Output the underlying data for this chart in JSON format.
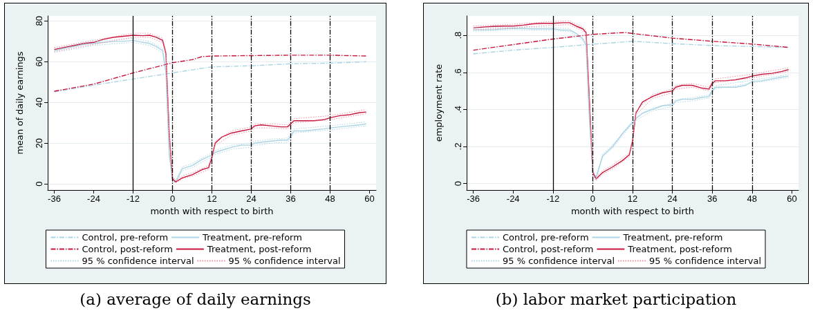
{
  "chart_data": [
    {
      "type": "line",
      "xlabel": "month with respect to birth",
      "ylabel": "mean of daily earnings",
      "xlim": [
        -38,
        62
      ],
      "xticks": [
        -36,
        -24,
        -12,
        0,
        12,
        24,
        36,
        48,
        60
      ],
      "ylim": [
        -3,
        82.5
      ],
      "yticks": [
        0,
        20,
        40,
        60,
        80
      ],
      "grid": "y",
      "legend": "bottom",
      "marker": "none",
      "x": [
        -36,
        -33,
        -30,
        -27,
        -24,
        -21,
        -18,
        -15,
        -12,
        -9,
        -7,
        -5,
        -3,
        -2,
        -1,
        0,
        1,
        3,
        6,
        9,
        11,
        12,
        13,
        15,
        18,
        21,
        24,
        25,
        27,
        30,
        33,
        35,
        36,
        37,
        40,
        43,
        46,
        48,
        51,
        54,
        57,
        59
      ],
      "series": [
        {
          "name": "Control, pre-reform",
          "color": "#a9d4e4",
          "line_style": "dashed",
          "x": [
            -36,
            -24,
            -12,
            0,
            6,
            12,
            24,
            36,
            48,
            59
          ],
          "values": [
            45.2,
            48.5,
            51.5,
            54.5,
            56,
            57.5,
            58,
            59,
            59.3,
            60
          ]
        },
        {
          "name": "Treatment, pre-reform",
          "color": "#a9d4e4",
          "line_style": "solid",
          "values": [
            65.5,
            66.5,
            67.5,
            68.5,
            69,
            69.5,
            70,
            70,
            70.5,
            69.5,
            69,
            67.5,
            65.5,
            55,
            15,
            2,
            1,
            7.5,
            9,
            12,
            13.5,
            14,
            15.5,
            16.5,
            18,
            19,
            19,
            20,
            20.5,
            21,
            21.5,
            21.5,
            23.5,
            26,
            26,
            26.5,
            27,
            27.5,
            28,
            28.5,
            29,
            29.5
          ]
        },
        {
          "name": "Control, post-reform",
          "color": "#c8143c",
          "line_style": "dashed",
          "x": [
            -36,
            -24,
            -12,
            0,
            6,
            9,
            12,
            24,
            36,
            48,
            59
          ],
          "values": [
            45.5,
            49,
            54.5,
            59.5,
            61,
            62.5,
            62.8,
            63,
            63.2,
            63.2,
            62.8
          ]
        },
        {
          "name": "Treatment, post-reform",
          "color": "#c8143c",
          "line_style": "solid",
          "values": [
            66,
            67,
            68,
            69,
            69.5,
            71,
            72,
            72.5,
            73,
            72.8,
            73,
            72,
            70.5,
            64,
            25,
            2.5,
            1,
            3,
            4.5,
            7,
            8,
            13,
            20,
            23,
            25,
            26,
            27,
            28.5,
            29,
            28.5,
            28,
            28,
            29.5,
            31,
            31,
            31,
            31.5,
            32.5,
            33.5,
            34,
            35,
            35.3
          ]
        },
        {
          "name": "95 % confidence interval",
          "color": "#a9d4e4",
          "line_style": "dotted",
          "x": [
            -36,
            -24,
            -12,
            -7,
            -3,
            -2,
            -1,
            0,
            1,
            3,
            6,
            11,
            12,
            13,
            18,
            24,
            25,
            30,
            35,
            36,
            37,
            48,
            59
          ],
          "values": [
            66.5,
            70,
            71.5,
            70,
            66.5,
            56,
            16,
            3,
            1.8,
            8.5,
            10,
            14.5,
            15,
            16.5,
            19,
            20,
            21,
            22,
            22.5,
            24.5,
            27,
            28.5,
            30.5
          ]
        },
        {
          "name": "95 % confidence interval",
          "color": "#f08ca0",
          "line_style": "dotted",
          "x": [
            -36,
            -24,
            -12,
            -7,
            -3,
            -2,
            -1,
            0,
            1,
            3,
            6,
            11,
            12,
            13,
            18,
            24,
            25,
            30,
            35,
            36,
            37,
            48,
            59
          ],
          "values": [
            67,
            70.5,
            74,
            74,
            71.5,
            65,
            26,
            3.5,
            1.8,
            4,
            5.5,
            9,
            14,
            21,
            26,
            28,
            29.5,
            29.5,
            29,
            30.5,
            32,
            33.5,
            36.5
          ]
        },
        {
          "color": "#a9d4e4",
          "line_style": "dotted",
          "x": [
            -36,
            -24,
            -12,
            -7,
            -3,
            -2,
            -1,
            0,
            1,
            3,
            6,
            11,
            12,
            13,
            18,
            24,
            25,
            30,
            35,
            36,
            37,
            48,
            59
          ],
          "values": [
            64.5,
            68,
            69.5,
            68,
            64.5,
            54,
            14,
            1,
            0.5,
            6.5,
            8,
            12.5,
            13,
            14.5,
            17,
            18,
            19,
            20,
            20.5,
            22.5,
            25,
            26.5,
            28.5
          ]
        },
        {
          "color": "#f08ca0",
          "line_style": "dotted",
          "x": [
            -36,
            -24,
            -12,
            -7,
            -3,
            -2,
            -1,
            0,
            1,
            3,
            6,
            11,
            12,
            13,
            18,
            24,
            25,
            30,
            35,
            36,
            37,
            48,
            59
          ],
          "values": [
            65,
            68.5,
            72,
            72,
            69.5,
            63,
            24,
            1.5,
            0.5,
            2.5,
            3.8,
            7,
            12,
            19,
            24,
            26,
            27.5,
            27.5,
            27,
            28.5,
            30,
            31.5,
            34.5
          ]
        }
      ],
      "ref_lines": [
        {
          "axis": "x",
          "value": -12,
          "color": "#000000",
          "line_style": "solid"
        },
        {
          "axis": "x",
          "value": 0,
          "color": "#000000",
          "line_style": "dashed"
        },
        {
          "axis": "x",
          "value": 12,
          "color": "#000000",
          "line_style": "dashed"
        },
        {
          "axis": "x",
          "value": 24,
          "color": "#000000",
          "line_style": "dashed"
        },
        {
          "axis": "x",
          "value": 36,
          "color": "#000000",
          "line_style": "dashed"
        },
        {
          "axis": "x",
          "value": 48,
          "color": "#000000",
          "line_style": "dashed"
        }
      ],
      "annotations": [
        "(a) average of daily earnings"
      ]
    },
    {
      "type": "line",
      "xlabel": "month with respect to birth",
      "ylabel": "employment rate",
      "xlim": [
        -38,
        62
      ],
      "xticks": [
        -36,
        -24,
        -12,
        0,
        12,
        24,
        36,
        48,
        60
      ],
      "ylim": [
        -0.035,
        0.905
      ],
      "yticks": [
        0,
        {
          "value": 0.2,
          "label": ".2"
        },
        {
          "value": 0.4,
          "label": ".4"
        },
        {
          "value": 0.6,
          "label": ".6"
        },
        {
          "value": 0.8,
          "label": ".8"
        }
      ],
      "grid": "y",
      "legend": "bottom",
      "marker": "none",
      "x": [
        -36,
        -33,
        -30,
        -27,
        -24,
        -21,
        -18,
        -15,
        -12,
        -9,
        -7,
        -5,
        -3,
        -2,
        -1,
        0,
        1,
        3,
        6,
        9,
        11,
        12,
        13,
        15,
        18,
        21,
        24,
        25,
        27,
        30,
        33,
        35,
        36,
        37,
        40,
        43,
        46,
        48,
        51,
        54,
        57,
        59
      ],
      "series": [
        {
          "name": "Control, pre-reform",
          "color": "#a9d4e4",
          "line_style": "dashed",
          "x": [
            -36,
            -24,
            -12,
            0,
            12,
            24,
            36,
            48,
            59
          ],
          "values": [
            0.7,
            0.72,
            0.735,
            0.752,
            0.768,
            0.755,
            0.745,
            0.74,
            0.735
          ]
        },
        {
          "name": "Treatment, pre-reform",
          "color": "#a9d4e4",
          "line_style": "solid",
          "values": [
            0.83,
            0.83,
            0.83,
            0.835,
            0.838,
            0.837,
            0.835,
            0.835,
            0.835,
            0.828,
            0.828,
            0.81,
            0.78,
            0.75,
            0.35,
            0.06,
            0.03,
            0.15,
            0.2,
            0.27,
            0.31,
            0.33,
            0.35,
            0.38,
            0.4,
            0.42,
            0.425,
            0.445,
            0.455,
            0.455,
            0.465,
            0.47,
            0.5,
            0.52,
            0.52,
            0.52,
            0.53,
            0.55,
            0.555,
            0.565,
            0.575,
            0.58
          ]
        },
        {
          "name": "Control, post-reform",
          "color": "#c8143c",
          "line_style": "dashed",
          "x": [
            -36,
            -24,
            -12,
            0,
            6,
            10,
            12,
            24,
            36,
            48,
            59
          ],
          "values": [
            0.72,
            0.75,
            0.78,
            0.805,
            0.812,
            0.815,
            0.81,
            0.785,
            0.768,
            0.753,
            0.735
          ]
        },
        {
          "name": "Treatment, post-reform",
          "color": "#c8143c",
          "line_style": "solid",
          "values": [
            0.84,
            0.845,
            0.848,
            0.85,
            0.85,
            0.855,
            0.862,
            0.865,
            0.865,
            0.868,
            0.868,
            0.85,
            0.835,
            0.815,
            0.45,
            0.06,
            0.025,
            0.06,
            0.09,
            0.125,
            0.155,
            0.23,
            0.38,
            0.44,
            0.47,
            0.49,
            0.5,
            0.52,
            0.53,
            0.53,
            0.515,
            0.51,
            0.54,
            0.555,
            0.555,
            0.56,
            0.57,
            0.58,
            0.59,
            0.595,
            0.605,
            0.615
          ]
        },
        {
          "name": "95 % confidence interval",
          "color": "#a9d4e4",
          "line_style": "dotted",
          "x": [
            -36,
            -24,
            -12,
            -7,
            -3,
            -2,
            -1,
            0,
            1,
            3,
            6,
            11,
            12,
            13,
            18,
            24,
            25,
            30,
            35,
            36,
            37,
            48,
            59
          ],
          "values": [
            0.838,
            0.846,
            0.843,
            0.836,
            0.788,
            0.758,
            0.358,
            0.068,
            0.038,
            0.158,
            0.208,
            0.318,
            0.338,
            0.358,
            0.408,
            0.433,
            0.453,
            0.463,
            0.478,
            0.508,
            0.528,
            0.558,
            0.588
          ]
        },
        {
          "name": "95 % confidence interval",
          "color": "#f08ca0",
          "line_style": "dotted",
          "x": [
            -36,
            -24,
            -12,
            -7,
            -3,
            -2,
            -1,
            0,
            1,
            3,
            6,
            11,
            12,
            13,
            18,
            24,
            25,
            30,
            35,
            36,
            37,
            48,
            59
          ],
          "values": [
            0.85,
            0.86,
            0.875,
            0.878,
            0.845,
            0.825,
            0.46,
            0.07,
            0.035,
            0.07,
            0.1,
            0.165,
            0.24,
            0.39,
            0.48,
            0.51,
            0.53,
            0.54,
            0.52,
            0.55,
            0.565,
            0.59,
            0.625
          ]
        },
        {
          "color": "#a9d4e4",
          "line_style": "dotted",
          "x": [
            -36,
            -24,
            -12,
            -7,
            -3,
            -2,
            -1,
            0,
            1,
            3,
            6,
            11,
            12,
            13,
            18,
            24,
            25,
            30,
            35,
            36,
            37,
            48,
            59
          ],
          "values": [
            0.822,
            0.83,
            0.827,
            0.82,
            0.772,
            0.742,
            0.342,
            0.052,
            0.022,
            0.142,
            0.192,
            0.302,
            0.322,
            0.342,
            0.392,
            0.417,
            0.437,
            0.447,
            0.462,
            0.492,
            0.512,
            0.542,
            0.572
          ]
        },
        {
          "color": "#f08ca0",
          "line_style": "dotted",
          "x": [
            -36,
            -24,
            -12,
            -7,
            -3,
            -2,
            -1,
            0,
            1,
            3,
            6,
            11,
            12,
            13,
            18,
            24,
            25,
            30,
            35,
            36,
            37,
            48,
            59
          ],
          "values": [
            0.83,
            0.84,
            0.855,
            0.858,
            0.825,
            0.805,
            0.44,
            0.05,
            0.015,
            0.05,
            0.08,
            0.145,
            0.22,
            0.37,
            0.46,
            0.49,
            0.51,
            0.52,
            0.5,
            0.53,
            0.545,
            0.57,
            0.605
          ]
        }
      ],
      "ref_lines": [
        {
          "axis": "x",
          "value": -12,
          "color": "#000000",
          "line_style": "solid"
        },
        {
          "axis": "x",
          "value": 0,
          "color": "#000000",
          "line_style": "dashed"
        },
        {
          "axis": "x",
          "value": 12,
          "color": "#000000",
          "line_style": "dashed"
        },
        {
          "axis": "x",
          "value": 24,
          "color": "#000000",
          "line_style": "dashed"
        },
        {
          "axis": "x",
          "value": 36,
          "color": "#000000",
          "line_style": "dashed"
        },
        {
          "axis": "x",
          "value": 48,
          "color": "#000000",
          "line_style": "dashed"
        }
      ],
      "annotations": [
        "(b) labor market participation"
      ]
    }
  ]
}
